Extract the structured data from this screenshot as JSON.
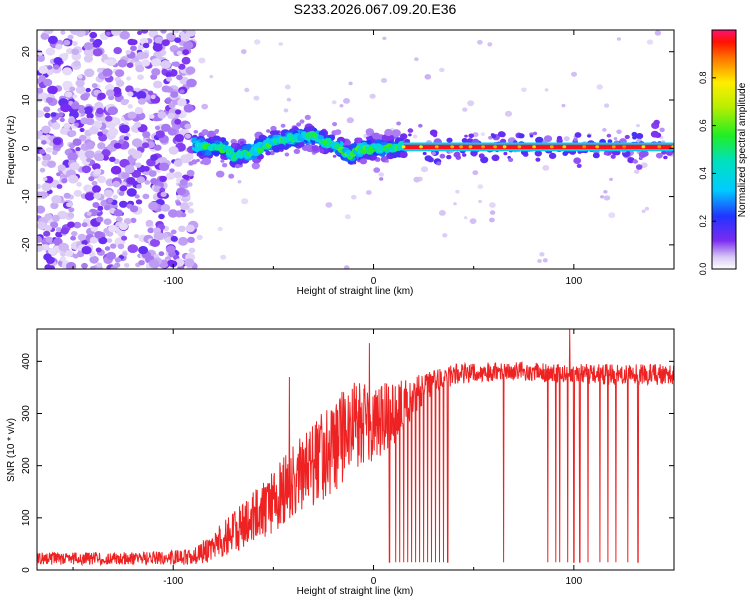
{
  "page": {
    "title": "S233.2026.067.09.20.E36"
  },
  "chart_data": [
    {
      "type": "heatmap",
      "xlabel": "Height of straight line (km)",
      "ylabel": "Frequency (Hz)",
      "xlim": [
        -168,
        150
      ],
      "ylim": [
        -25,
        24.5
      ],
      "xticks": [
        -100,
        0,
        100
      ],
      "yticks": [
        -20,
        -10,
        0,
        10,
        20
      ],
      "colorbar": {
        "label": "Normalized spectral amplitude",
        "range": [
          0,
          1
        ],
        "ticks": [
          0.0,
          0.2,
          0.4,
          0.6,
          0.8
        ]
      },
      "features": [
        {
          "name": "broadband noise",
          "x_range": [
            -168,
            -90
          ],
          "frequency_range": [
            -25,
            24.5
          ],
          "amplitude": "0.05-0.25"
        },
        {
          "name": "scattered signal",
          "x_range": [
            -90,
            15
          ],
          "center_frequency": [
            [
              -88,
              0.5
            ],
            [
              -82,
              0.3
            ],
            [
              -75,
              0.2
            ],
            [
              -70,
              -1.5
            ],
            [
              -65,
              -1.0
            ],
            [
              -60,
              -0.5
            ],
            [
              -55,
              0.5
            ],
            [
              -50,
              1.5
            ],
            [
              -45,
              1.5
            ],
            [
              -40,
              2.0
            ],
            [
              -35,
              2.5
            ],
            [
              -30,
              2.3
            ],
            [
              -25,
              1.5
            ],
            [
              -20,
              0.8
            ],
            [
              -15,
              -0.5
            ],
            [
              -12,
              -1.5
            ],
            [
              -8,
              -0.5
            ],
            [
              -3,
              0.0
            ],
            [
              5,
              0.0
            ],
            [
              15,
              0.2
            ]
          ]
        },
        {
          "name": "stable tone",
          "x_range": [
            15,
            150
          ],
          "frequency": 0.3,
          "amplitude": "0.9-1.0"
        }
      ]
    },
    {
      "type": "line",
      "xlabel": "Height of straight line (km)",
      "ylabel": "SNR (10 * v/v)",
      "xlim": [
        -168,
        150
      ],
      "ylim": [
        0,
        462
      ],
      "xticks": [
        -100,
        0,
        100
      ],
      "yticks": [
        0,
        100,
        200,
        300,
        400
      ],
      "series": [
        {
          "name": "SNR",
          "color": "#ee2222",
          "envelope": {
            "x": [
              -168,
              -120,
              -90,
              -80,
              -70,
              -60,
              -50,
              -40,
              -30,
              -20,
              -10,
              0,
              10,
              20,
              30,
              40,
              60,
              80,
              100,
              120,
              150
            ],
            "mean": [
              22,
              22,
              25,
              45,
              70,
              100,
              130,
              170,
              200,
              240,
              270,
              280,
              300,
              330,
              360,
              375,
              380,
              380,
              375,
              375,
              375
            ],
            "spread": [
              12,
              12,
              15,
              30,
              40,
              50,
              60,
              70,
              80,
              90,
              90,
              80,
              60,
              40,
              25,
              20,
              18,
              18,
              20,
              20,
              20
            ]
          },
          "spikes": [
            {
              "x": -2,
              "value": 435
            },
            {
              "x": 98,
              "value": 462
            },
            {
              "x": -42,
              "value": 370
            }
          ],
          "dropouts_x": [
            8,
            11,
            13,
            15,
            17,
            19,
            21,
            23,
            25,
            27,
            29,
            31,
            33,
            35,
            37,
            65,
            87,
            91,
            93,
            97,
            100,
            103,
            107,
            113,
            117,
            121,
            127,
            132
          ],
          "dropout_value": 15
        }
      ]
    }
  ]
}
